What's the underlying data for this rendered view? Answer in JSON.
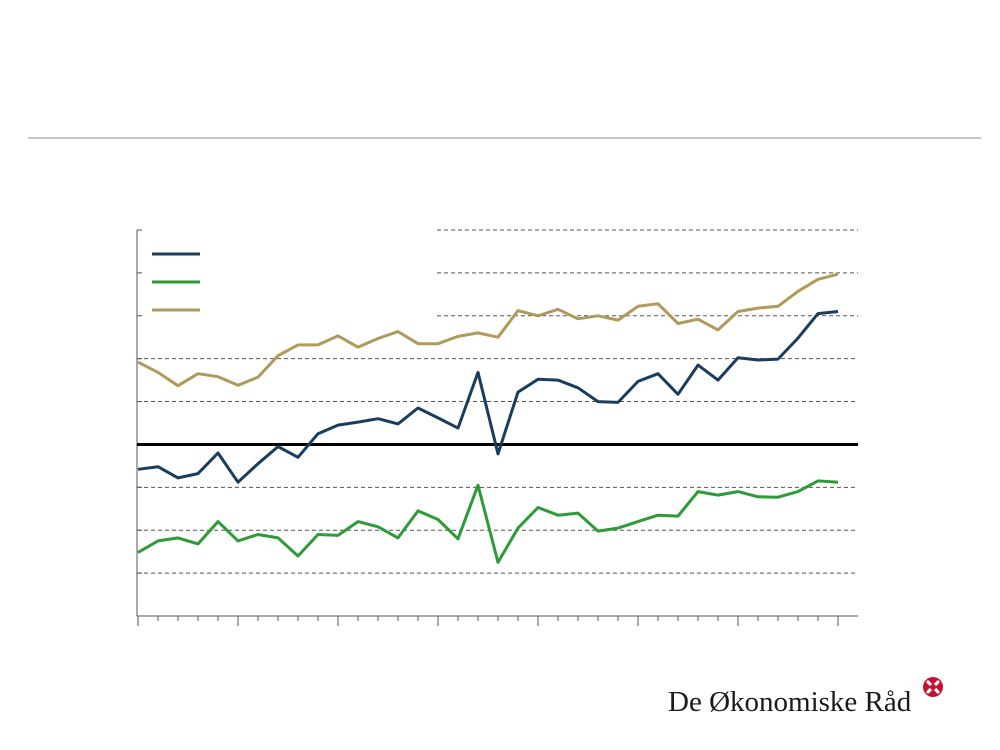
{
  "brand": {
    "name": "De Økonomiske Råd",
    "accent": "#c8102e"
  },
  "chart_data": {
    "type": "line",
    "title": "",
    "xlabel": "",
    "ylabel": "",
    "grid": true,
    "legend": "top-left",
    "y_ticks": 9,
    "x": [
      1,
      2,
      3,
      4,
      5,
      6,
      7,
      8,
      9,
      10,
      11,
      12,
      13,
      14,
      15,
      16,
      17,
      18,
      19,
      20,
      21,
      22,
      23,
      24,
      25,
      26,
      27,
      28,
      29,
      30,
      31,
      32,
      33,
      34,
      35,
      36
    ],
    "series": [
      {
        "color": "#1b3d5c",
        "values": [
          -0.58,
          -0.52,
          -0.78,
          -0.68,
          -0.2,
          -0.88,
          -0.45,
          -0.05,
          -0.3,
          0.25,
          0.45,
          0.52,
          0.6,
          0.48,
          0.85,
          0.62,
          0.38,
          1.68,
          -0.22,
          1.22,
          1.52,
          1.5,
          1.32,
          1.0,
          0.98,
          1.47,
          1.65,
          1.17,
          1.85,
          1.5,
          2.02,
          1.97,
          1.99,
          2.48,
          3.05,
          3.1
        ]
      },
      {
        "color": "#2e9a38",
        "values": [
          -2.52,
          -2.25,
          -2.18,
          -2.32,
          -1.8,
          -2.25,
          -2.1,
          -2.18,
          -2.6,
          -2.1,
          -2.12,
          -1.8,
          -1.92,
          -2.18,
          -1.55,
          -1.75,
          -2.2,
          -0.95,
          -2.75,
          -1.95,
          -1.47,
          -1.65,
          -1.6,
          -2.02,
          -1.95,
          -1.8,
          -1.65,
          -1.67,
          -1.1,
          -1.18,
          -1.1,
          -1.22,
          -1.23,
          -1.1,
          -0.85,
          -0.88
        ]
      },
      {
        "color": "#b09a5a",
        "values": [
          1.92,
          1.68,
          1.37,
          1.65,
          1.58,
          1.38,
          1.57,
          2.07,
          2.32,
          2.32,
          2.53,
          2.27,
          2.47,
          2.63,
          2.35,
          2.35,
          2.52,
          2.6,
          2.5,
          3.12,
          3.0,
          3.15,
          2.93,
          3.0,
          2.9,
          3.22,
          3.28,
          2.82,
          2.92,
          2.67,
          3.1,
          3.18,
          3.22,
          3.57,
          3.85,
          3.97
        ]
      }
    ]
  }
}
